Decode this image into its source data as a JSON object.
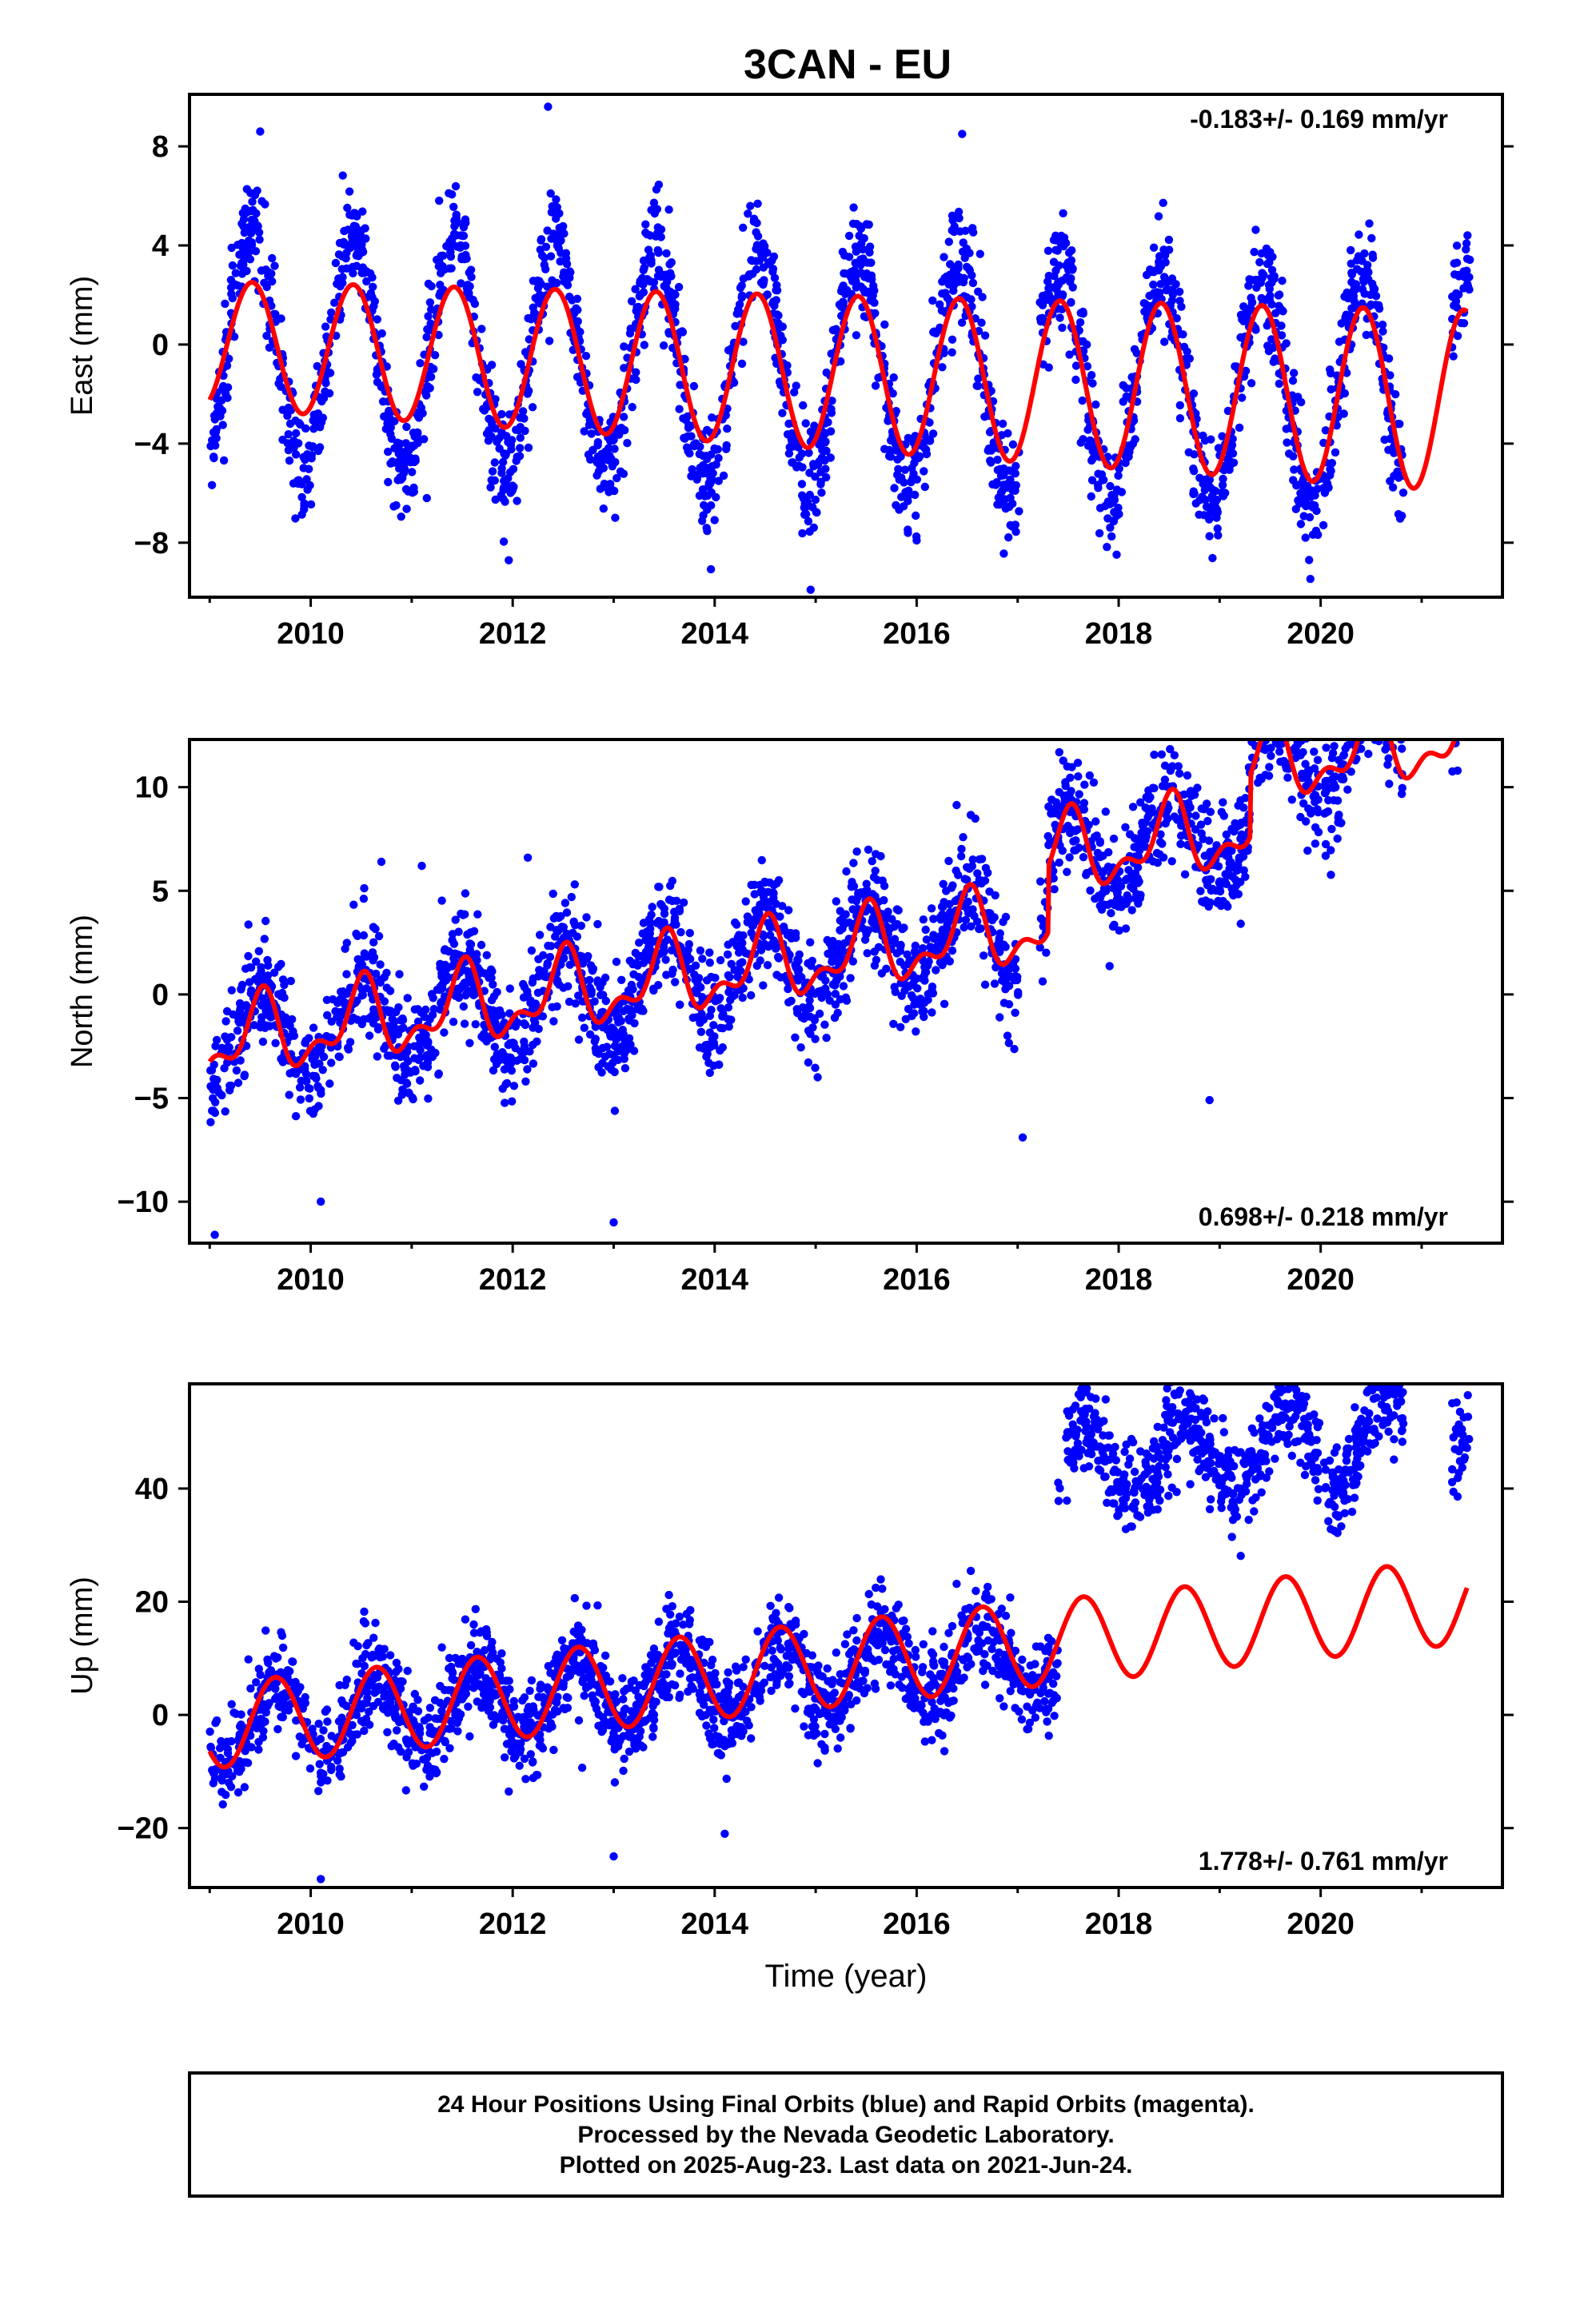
{
  "title": "3CAN - EU",
  "colors": {
    "data": "#0000ff",
    "model": "#ff0000",
    "frame": "#000000"
  },
  "footer": {
    "lines": [
      "24 Hour Positions Using Final Orbits (blue) and Rapid Orbits (magenta).",
      "Processed by the Nevada Geodetic Laboratory.",
      "Plotted on 2025-Aug-23. Last data on 2021-Jun-24."
    ]
  },
  "chart_data": [
    {
      "type": "scatter",
      "ylabel": "East (mm)",
      "xlabel": "",
      "rate_text": "-0.183+/- 0.169 mm/yr",
      "rate_position": "top-right",
      "xlim": [
        2008.8,
        2021.8
      ],
      "ylim": [
        -10.2,
        10.1
      ],
      "xticks": [
        2010,
        2012,
        2014,
        2016,
        2018,
        2020
      ],
      "yticks": [
        -8,
        -4,
        0,
        4,
        8
      ],
      "yticklabels": [
        "−8",
        "−4",
        "0",
        "4",
        "8"
      ],
      "data_range": [
        2009.0,
        2021.48
      ],
      "gaps": [
        [
          2017.02,
          2017.22
        ],
        [
          2020.82,
          2021.3
        ]
      ],
      "data_model": {
        "offset": 0.0,
        "trend": -0.183,
        "annual_amp": 4.6,
        "annual_phase": 2009.42,
        "noise": 1.1
      },
      "model_line": {
        "offset": 0.0,
        "trend": -0.183,
        "annual_amp": 2.55,
        "annual_phase": 2009.42,
        "amp_growth": 0.09,
        "x_end": 2021.45
      },
      "outliers": [
        [
          2009.5,
          8.6
        ],
        [
          2012.35,
          9.6
        ],
        [
          2014.95,
          -9.9
        ],
        [
          2016.45,
          8.5
        ],
        [
          2011.15,
          -6.2
        ],
        [
          2019.85,
          -7.8
        ],
        [
          2013.85,
          -6.1
        ]
      ]
    },
    {
      "type": "scatter",
      "ylabel": "North (mm)",
      "xlabel": "",
      "rate_text": "0.698+/- 0.218 mm/yr",
      "rate_position": "bottom-right",
      "xlim": [
        2008.8,
        2021.8
      ],
      "ylim": [
        -12.0,
        12.3
      ],
      "xticks": [
        2010,
        2012,
        2014,
        2016,
        2018,
        2020
      ],
      "yticks": [
        -10,
        -5,
        0,
        5,
        10
      ],
      "yticklabels": [
        "−10",
        "−5",
        "0",
        "5",
        "10"
      ],
      "data_range": [
        2009.0,
        2021.48
      ],
      "gaps": [
        [
          2017.02,
          2017.22
        ],
        [
          2020.82,
          2021.3
        ]
      ],
      "data_model": {
        "offset": -2.4,
        "trend": 0.698,
        "annual_amp": 2.2,
        "annual_phase": 2009.5,
        "noise": 1.3,
        "step": [
          2017.3,
          3.2
        ],
        "step2": [
          2019.3,
          3.0
        ]
      },
      "model_line": {
        "offset": -2.4,
        "trend": 0.698,
        "annual_amp": 1.6,
        "annual_phase": 2009.5,
        "semi_amp": 0.9,
        "step": [
          2017.3,
          3.2
        ],
        "step2": [
          2019.3,
          3.0
        ],
        "x_end": 2021.45
      },
      "outliers": [
        [
          2009.05,
          -11.6
        ],
        [
          2010.7,
          6.4
        ],
        [
          2011.1,
          6.2
        ],
        [
          2012.15,
          6.6
        ],
        [
          2013.0,
          -11.0
        ],
        [
          2018.9,
          -5.1
        ],
        [
          2017.05,
          -6.9
        ],
        [
          2019.45,
          11.8
        ],
        [
          2010.1,
          -10.0
        ]
      ]
    },
    {
      "type": "scatter",
      "ylabel": "Up (mm)",
      "xlabel": "Time (year)",
      "rate_text": "1.778+/- 0.761 mm/yr",
      "rate_position": "bottom-right",
      "xlim": [
        2008.8,
        2021.8
      ],
      "ylim": [
        -30.5,
        58.5
      ],
      "xticks": [
        2010,
        2012,
        2014,
        2016,
        2018,
        2020
      ],
      "yticks": [
        -20,
        0,
        20,
        40
      ],
      "yticklabels": [
        "−20",
        "0",
        "20",
        "40"
      ],
      "data_range": [
        2009.0,
        2021.48
      ],
      "gaps": [
        [
          2017.42,
          2017.48
        ],
        [
          2020.82,
          2021.3
        ]
      ],
      "data_model": {
        "offset": -2.0,
        "trend": 1.5,
        "annual_amp": 6.5,
        "annual_phase": 2009.65,
        "noise": 4.0,
        "step": [
          2017.4,
          33.0
        ]
      },
      "model_line": {
        "offset": -2.0,
        "trend": 1.778,
        "annual_amp": 7.5,
        "annual_phase": 2009.65,
        "x_end": 2021.45
      },
      "outliers": [
        [
          2010.1,
          -29.0
        ],
        [
          2019.6,
          57.0
        ],
        [
          2014.1,
          -21.0
        ],
        [
          2013.0,
          -25.0
        ]
      ]
    }
  ]
}
